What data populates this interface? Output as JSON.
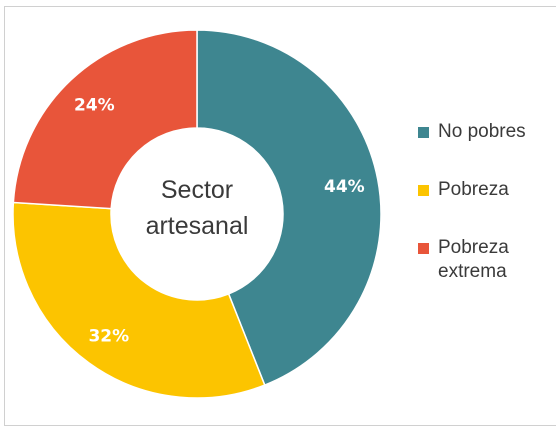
{
  "chart_data": {
    "type": "pie",
    "donut": true,
    "center_label_lines": [
      "Sector",
      "artesanal"
    ],
    "categories": [
      "No pobres",
      "Pobreza",
      "Pobreza extrema"
    ],
    "values": [
      44,
      32,
      24
    ],
    "data_labels": [
      "44%",
      "32%",
      "24%"
    ],
    "colors": [
      "#3e8690",
      "#fcc400",
      "#e8553a"
    ],
    "legend": "right"
  },
  "legend": {
    "items": [
      {
        "label": "No pobres",
        "color": "#3e8690"
      },
      {
        "label": "Pobreza",
        "color": "#fcc400"
      },
      {
        "label": "Pobreza extrema",
        "color": "#e8553a"
      }
    ]
  }
}
